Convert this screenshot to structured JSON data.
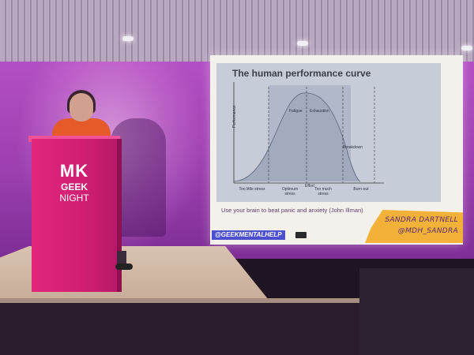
{
  "slide": {
    "title": "The human performance curve",
    "y_axis_label": "Performance",
    "x_axis_label": "Effort",
    "zones": [
      "Too little stress",
      "Optimum stress",
      "Too much stress",
      "Burn-out"
    ],
    "curve_labels": [
      "Fatigue",
      "Exhaustion",
      "Breakdown"
    ],
    "caption": "Use your brain to beat panic and anxiety (John Illman)",
    "hashtag": "@GEEKMENTALHELP",
    "speaker_name": "SANDRA DARTNELL",
    "speaker_handle": "@MDH_SANDRA"
  },
  "podium": {
    "logo_line1": "MK",
    "logo_line2": "GEEK",
    "logo_line3": "NIGHT"
  },
  "colors": {
    "podium": "#d01f73",
    "wall": "#a845bb",
    "banner": "#f2b23a",
    "hashtag_bg": "#4b4fd0"
  }
}
